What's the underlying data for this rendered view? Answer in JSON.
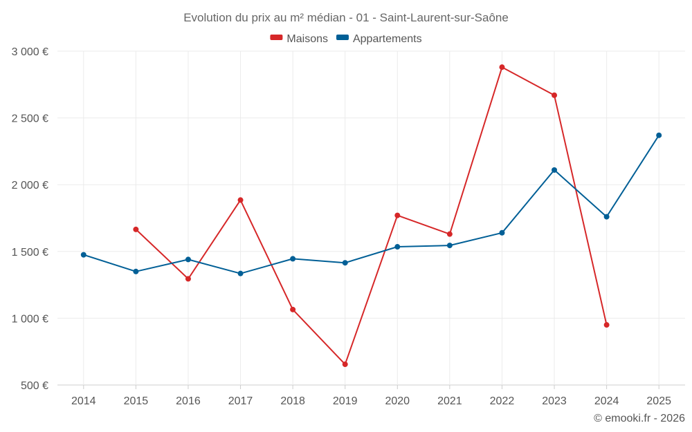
{
  "chart_data": {
    "type": "line",
    "title": "Evolution du prix au m² médian - 01 - Saint-Laurent-sur-Saône",
    "categories": [
      "2014",
      "2015",
      "2016",
      "2017",
      "2018",
      "2019",
      "2020",
      "2021",
      "2022",
      "2023",
      "2024",
      "2025"
    ],
    "series": [
      {
        "name": "Maisons",
        "color": "#d62728",
        "values": [
          null,
          1665,
          1295,
          1885,
          1065,
          655,
          1770,
          1630,
          2880,
          2670,
          950,
          null
        ]
      },
      {
        "name": "Appartements",
        "color": "#005f96",
        "values": [
          1475,
          1350,
          1440,
          1335,
          1445,
          1415,
          1535,
          1545,
          1640,
          2110,
          1760,
          2370
        ]
      }
    ],
    "ylim": [
      500,
      3000
    ],
    "yticks": [
      500,
      1000,
      1500,
      2000,
      2500,
      3000
    ],
    "ytick_labels": [
      "500 €",
      "1 000 €",
      "1 500 €",
      "2 000 €",
      "2 500 €",
      "3 000 €"
    ],
    "xlabel": "",
    "ylabel": "",
    "legend_position": "top-center",
    "grid": true
  },
  "credit": "© emooki.fr - 2026"
}
